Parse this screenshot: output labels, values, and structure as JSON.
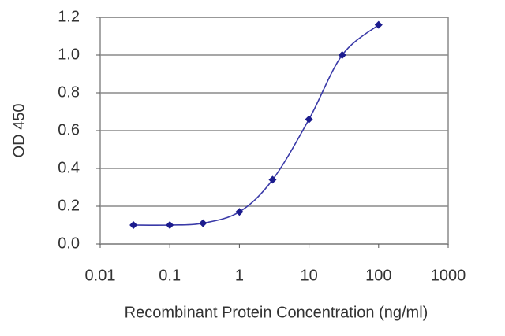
{
  "chart_data": {
    "type": "line",
    "x_label": "Recombinant Protein Concentration (ng/ml)",
    "y_label": "OD 450",
    "x": [
      0.03,
      0.1,
      0.3,
      1,
      3,
      10,
      30,
      100
    ],
    "values": [
      0.1,
      0.1,
      0.11,
      0.17,
      0.34,
      0.66,
      1.0,
      1.16
    ],
    "color": "#3a3aa8",
    "marker_color": "#1c1c8e",
    "xlim": [
      0.01,
      1000
    ],
    "xticks": [
      0.01,
      0.1,
      1,
      10,
      100,
      1000
    ],
    "xlog": true,
    "ylim": [
      0,
      1.2
    ],
    "yticks": [
      {
        "value": 0,
        "label": "0.0"
      },
      0.2,
      0.4,
      0.6,
      0.8,
      {
        "value": 1,
        "label": "1.0"
      },
      1.2
    ],
    "grid": true
  }
}
